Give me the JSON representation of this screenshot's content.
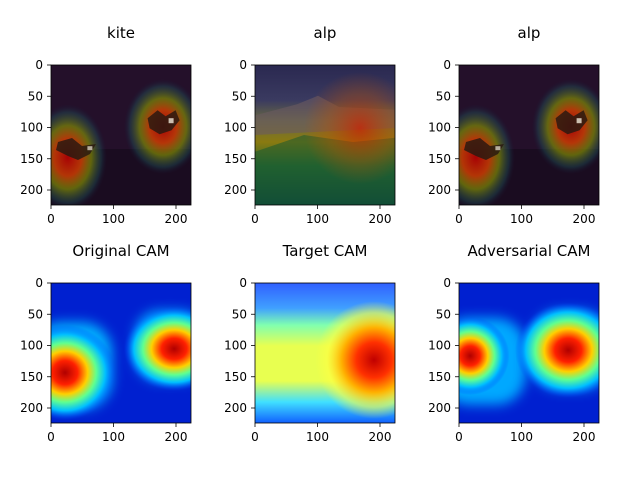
{
  "figure": {
    "panels": [
      {
        "title": "kite",
        "kind": "overlay-kite",
        "ticks_x": [
          "0",
          "100",
          "200"
        ],
        "ticks_y": [
          "0",
          "50",
          "100",
          "150",
          "200"
        ]
      },
      {
        "title": "alp",
        "kind": "overlay-alp",
        "ticks_x": [
          "0",
          "100",
          "200"
        ],
        "ticks_y": [
          "0",
          "50",
          "100",
          "150",
          "200"
        ]
      },
      {
        "title": "alp",
        "kind": "overlay-kite",
        "ticks_x": [
          "0",
          "100",
          "200"
        ],
        "ticks_y": [
          "0",
          "50",
          "100",
          "150",
          "200"
        ]
      },
      {
        "title": "Original CAM",
        "kind": "cam-original",
        "ticks_x": [
          "0",
          "100",
          "200"
        ],
        "ticks_y": [
          "0",
          "50",
          "100",
          "150",
          "200"
        ]
      },
      {
        "title": "Target CAM",
        "kind": "cam-target",
        "ticks_x": [
          "0",
          "100",
          "200"
        ],
        "ticks_y": [
          "0",
          "50",
          "100",
          "150",
          "200"
        ]
      },
      {
        "title": "Adversarial CAM",
        "kind": "cam-adversarial",
        "ticks_x": [
          "0",
          "100",
          "200"
        ],
        "ticks_y": [
          "0",
          "50",
          "100",
          "150",
          "200"
        ]
      }
    ],
    "colors": {
      "background": "#ffffff",
      "axis": "#000000"
    }
  }
}
